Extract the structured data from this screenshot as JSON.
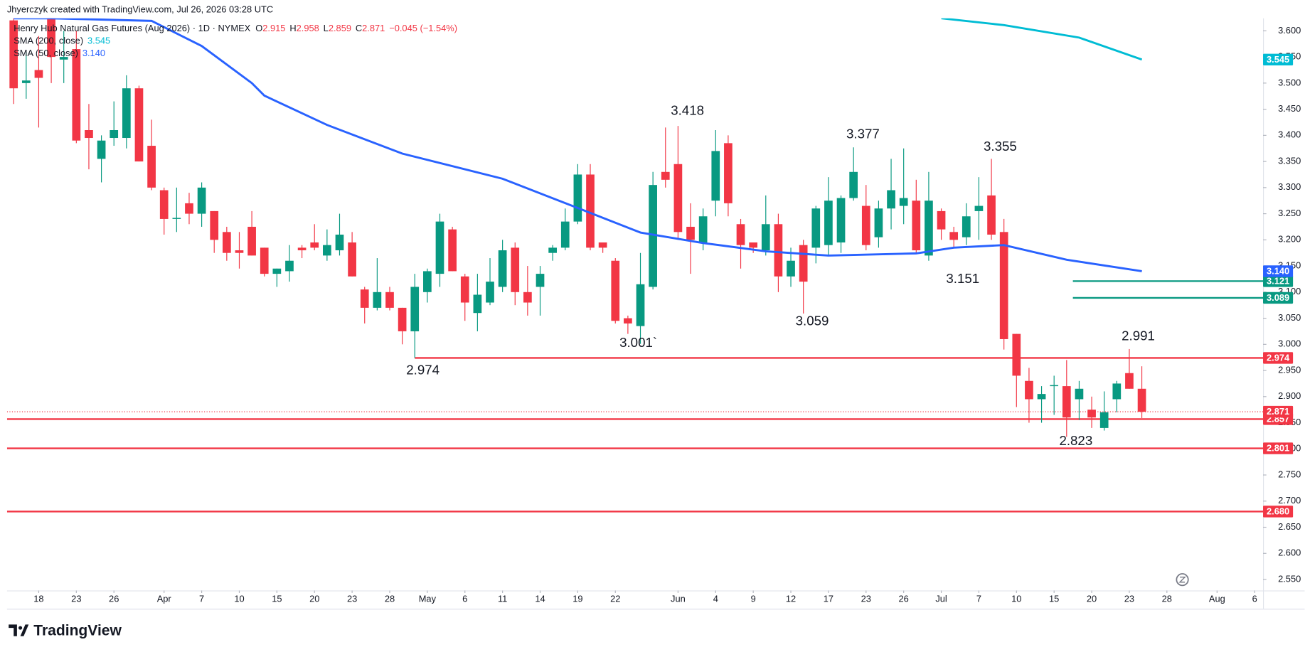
{
  "header": {
    "credit": "Jhyerczyk created with TradingView.com, Jul 26, 2026 03:28 UTC"
  },
  "footer": {
    "brand": "TradingView"
  },
  "chart_data": {
    "type": "candlestick",
    "title": "Henry Hub Natural Gas Futures (Aug 2026) · 1D · NYMEX",
    "quote": [
      {
        "key": "O",
        "text": "2.915"
      },
      {
        "key": "H",
        "text": "2.958"
      },
      {
        "key": "L",
        "text": "2.859"
      },
      {
        "key": "C",
        "text": "2.871"
      }
    ],
    "change": "−0.045 (−1.54%)",
    "up_color": "#089981",
    "down_color": "#f23645",
    "grid": false,
    "x": [
      0,
      1,
      2,
      3,
      4,
      5,
      6,
      7,
      8,
      9,
      10,
      11,
      12,
      13,
      14,
      15,
      16,
      17,
      18,
      19,
      20,
      21,
      22,
      23,
      24,
      25,
      26,
      27,
      28,
      29,
      30,
      31,
      32,
      33,
      34,
      35,
      36,
      37,
      38,
      39,
      40,
      41,
      42,
      43,
      44,
      45,
      46,
      47,
      48,
      49,
      50,
      51,
      52,
      53,
      54,
      55,
      56,
      57,
      58,
      59,
      60,
      61,
      62,
      63,
      64,
      65,
      66,
      67,
      68,
      69,
      70,
      71,
      72,
      73,
      74,
      75,
      76,
      77,
      78,
      79,
      80,
      81,
      82,
      83,
      84,
      85,
      86,
      87,
      88,
      89,
      90
    ],
    "open": [
      3.62,
      3.5,
      3.525,
      3.64,
      3.545,
      3.565,
      3.41,
      3.355,
      3.395,
      3.395,
      3.49,
      3.38,
      3.295,
      3.24,
      3.27,
      3.25,
      3.255,
      3.215,
      3.18,
      3.225,
      3.185,
      3.135,
      3.14,
      3.185,
      3.195,
      3.17,
      3.18,
      3.195,
      3.105,
      3.07,
      3.1,
      3.07,
      3.025,
      3.1,
      3.135,
      3.22,
      3.13,
      3.06,
      3.08,
      3.11,
      3.185,
      3.1,
      3.11,
      3.175,
      3.185,
      3.235,
      3.325,
      3.195,
      3.16,
      3.05,
      3.035,
      3.11,
      3.33,
      3.345,
      3.225,
      3.195,
      3.275,
      3.385,
      3.23,
      3.195,
      3.18,
      3.23,
      3.13,
      3.19,
      3.185,
      3.19,
      3.195,
      3.28,
      3.265,
      3.205,
      3.26,
      3.265,
      3.275,
      3.17,
      3.255,
      3.215,
      3.205,
      3.255,
      3.285,
      3.215,
      3.02,
      2.93,
      2.895,
      2.92,
      2.92,
      2.895,
      2.875,
      2.84,
      2.895,
      2.945,
      2.915
    ],
    "high": [
      3.64,
      3.56,
      3.59,
      3.66,
      3.6,
      3.6,
      3.46,
      3.4,
      3.465,
      3.515,
      3.495,
      3.43,
      3.3,
      3.3,
      3.29,
      3.31,
      3.255,
      3.225,
      3.215,
      3.255,
      3.185,
      3.145,
      3.19,
      3.19,
      3.23,
      3.22,
      3.25,
      3.215,
      3.11,
      3.165,
      3.11,
      3.07,
      3.135,
      3.145,
      3.25,
      3.225,
      3.135,
      3.135,
      3.165,
      3.2,
      3.195,
      3.15,
      3.15,
      3.19,
      3.26,
      3.345,
      3.345,
      3.195,
      3.165,
      3.055,
      3.175,
      3.33,
      3.415,
      3.418,
      3.27,
      3.26,
      3.41,
      3.4,
      3.24,
      3.195,
      3.285,
      3.25,
      3.185,
      3.2,
      3.265,
      3.32,
      3.285,
      3.377,
      3.305,
      3.275,
      3.355,
      3.375,
      3.315,
      3.33,
      3.26,
      3.225,
      3.27,
      3.32,
      3.355,
      3.24,
      3.02,
      2.955,
      2.92,
      2.94,
      2.97,
      2.93,
      2.9,
      2.91,
      2.93,
      2.991,
      2.958
    ],
    "low": [
      3.46,
      3.47,
      3.415,
      3.5,
      3.5,
      3.385,
      3.335,
      3.31,
      3.38,
      3.375,
      3.35,
      3.295,
      3.21,
      3.215,
      3.23,
      3.225,
      3.175,
      3.16,
      3.145,
      3.17,
      3.13,
      3.11,
      3.12,
      3.165,
      3.18,
      3.16,
      3.17,
      3.13,
      3.04,
      3.065,
      3.065,
      3.0,
      2.974,
      3.08,
      3.11,
      3.14,
      3.045,
      3.025,
      3.075,
      3.1,
      3.075,
      3.055,
      3.055,
      3.16,
      3.18,
      3.23,
      3.18,
      3.175,
      3.04,
      3.02,
      3.001,
      3.105,
      3.3,
      3.2,
      3.135,
      3.18,
      3.245,
      3.245,
      3.145,
      3.175,
      3.17,
      3.1,
      3.11,
      3.059,
      3.155,
      3.17,
      3.175,
      3.275,
      3.18,
      3.185,
      3.22,
      3.23,
      3.175,
      3.16,
      3.2,
      3.185,
      3.19,
      3.2,
      3.2,
      2.99,
      2.88,
      2.85,
      2.85,
      2.865,
      2.823,
      2.855,
      2.84,
      2.835,
      2.87,
      2.915,
      2.859
    ],
    "close": [
      3.49,
      3.505,
      3.51,
      3.55,
      3.55,
      3.39,
      3.395,
      3.39,
      3.41,
      3.49,
      3.35,
      3.3,
      3.24,
      3.242,
      3.25,
      3.3,
      3.2,
      3.175,
      3.175,
      3.17,
      3.135,
      3.145,
      3.16,
      3.18,
      3.185,
      3.19,
      3.21,
      3.13,
      3.07,
      3.1,
      3.07,
      3.025,
      3.11,
      3.14,
      3.235,
      3.14,
      3.08,
      3.095,
      3.12,
      3.18,
      3.1,
      3.08,
      3.135,
      3.185,
      3.235,
      3.325,
      3.185,
      3.185,
      3.045,
      3.04,
      3.115,
      3.305,
      3.315,
      3.215,
      3.2,
      3.245,
      3.37,
      3.27,
      3.19,
      3.185,
      3.23,
      3.13,
      3.16,
      3.12,
      3.26,
      3.275,
      3.28,
      3.33,
      3.19,
      3.26,
      3.295,
      3.28,
      3.18,
      3.275,
      3.22,
      3.2,
      3.245,
      3.265,
      3.21,
      3.01,
      2.94,
      2.895,
      2.905,
      2.922,
      2.86,
      2.915,
      2.86,
      2.87,
      2.925,
      2.915,
      2.871
    ],
    "close_label": "2.871",
    "xlim": [
      -0.53,
      99.67
    ],
    "xticks": [
      {
        "value": 2,
        "label": "18"
      },
      {
        "value": 5,
        "label": "23"
      },
      {
        "value": 8,
        "label": "26"
      },
      {
        "value": 12,
        "label": "Apr"
      },
      {
        "value": 15,
        "label": "7"
      },
      {
        "value": 18,
        "label": "10"
      },
      {
        "value": 21,
        "label": "15"
      },
      {
        "value": 24,
        "label": "20"
      },
      {
        "value": 27,
        "label": "23"
      },
      {
        "value": 30,
        "label": "28"
      },
      {
        "value": 33,
        "label": "May"
      },
      {
        "value": 36,
        "label": "6"
      },
      {
        "value": 39,
        "label": "11"
      },
      {
        "value": 42,
        "label": "14"
      },
      {
        "value": 45,
        "label": "19"
      },
      {
        "value": 48,
        "label": "22"
      },
      {
        "value": 53,
        "label": "Jun"
      },
      {
        "value": 56,
        "label": "4"
      },
      {
        "value": 59,
        "label": "9"
      },
      {
        "value": 62,
        "label": "12"
      },
      {
        "value": 65,
        "label": "17"
      },
      {
        "value": 68,
        "label": "23"
      },
      {
        "value": 71,
        "label": "26"
      },
      {
        "value": 74,
        "label": "Jul"
      },
      {
        "value": 77,
        "label": "7"
      },
      {
        "value": 80,
        "label": "10"
      },
      {
        "value": 83,
        "label": "15"
      },
      {
        "value": 86,
        "label": "20"
      },
      {
        "value": 89,
        "label": "23"
      },
      {
        "value": 92,
        "label": "28"
      },
      {
        "value": 96,
        "label": "Aug"
      },
      {
        "value": 99,
        "label": "6"
      }
    ],
    "ylim": [
      2.529,
      3.624
    ],
    "yticks": [
      {
        "value": 3.6,
        "label": "3.600"
      },
      {
        "value": 3.55,
        "label": "3.550"
      },
      {
        "value": 3.5,
        "label": "3.500"
      },
      {
        "value": 3.45,
        "label": "3.450"
      },
      {
        "value": 3.4,
        "label": "3.400"
      },
      {
        "value": 3.35,
        "label": "3.350"
      },
      {
        "value": 3.3,
        "label": "3.300"
      },
      {
        "value": 3.25,
        "label": "3.250"
      },
      {
        "value": 3.2,
        "label": "3.200"
      },
      {
        "value": 3.15,
        "label": "3.150"
      },
      {
        "value": 3.1,
        "label": "3.100"
      },
      {
        "value": 3.05,
        "label": "3.050"
      },
      {
        "value": 3,
        "label": "3.000"
      },
      {
        "value": 2.95,
        "label": "2.950"
      },
      {
        "value": 2.9,
        "label": "2.900"
      },
      {
        "value": 2.85,
        "label": "2.850"
      },
      {
        "value": 2.8,
        "label": "2.800"
      },
      {
        "value": 2.75,
        "label": "2.750"
      },
      {
        "value": 2.7,
        "label": "2.700"
      },
      {
        "value": 2.65,
        "label": "2.650"
      },
      {
        "value": 2.6,
        "label": "2.600"
      },
      {
        "value": 2.55,
        "label": "2.550"
      }
    ],
    "series": [
      {
        "name": "SMA (200, close)",
        "color": "#00bcd4",
        "x": [
          74,
          79,
          85,
          90
        ],
        "values": [
          3.624,
          3.611,
          3.587,
          3.545
        ],
        "last_label": "3.545"
      },
      {
        "name": "SMA (50, close)",
        "color": "#2962ff",
        "x": [
          0,
          3,
          11,
          15,
          19,
          20,
          25,
          31,
          39,
          45,
          50,
          55,
          60,
          65,
          72,
          75,
          79,
          84,
          90
        ],
        "values": [
          3.624,
          3.624,
          3.619,
          3.571,
          3.5,
          3.476,
          3.42,
          3.365,
          3.317,
          3.261,
          3.214,
          3.194,
          3.178,
          3.17,
          3.174,
          3.185,
          3.19,
          3.162,
          3.14
        ],
        "last_label": "3.140"
      }
    ],
    "levels": [
      {
        "value": 3.121,
        "label": "3.121",
        "color": "#089981",
        "start_x": 84.5
      },
      {
        "value": 3.089,
        "label": "3.089",
        "color": "#089981",
        "start_x": 84.5
      },
      {
        "value": 2.974,
        "label": "2.974",
        "color": "#f23645",
        "start_x": 32
      },
      {
        "value": 2.857,
        "label": "2.857",
        "color": "#f23645"
      },
      {
        "value": 2.801,
        "label": "2.801",
        "color": "#f23645"
      },
      {
        "value": 2.68,
        "label": "2.680",
        "color": "#f23645"
      }
    ],
    "annotations": [
      "3.418",
      "3.377",
      "3.355",
      "3.151",
      "3.059",
      "3.001`",
      "2.974",
      "2.991",
      "2.823"
    ]
  }
}
